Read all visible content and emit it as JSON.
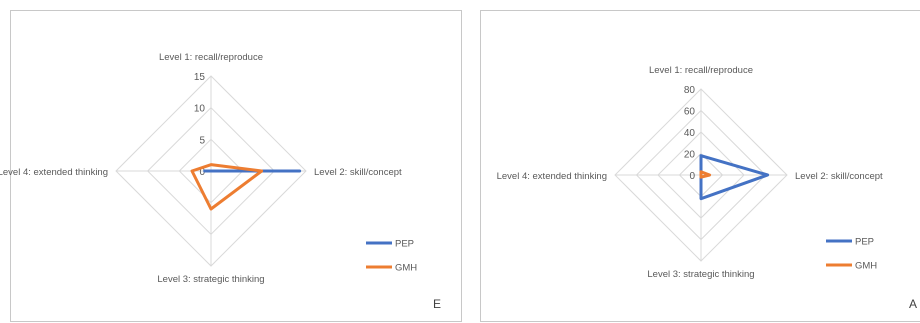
{
  "colors": {
    "pep": "#4472C4",
    "gmh": "#ED7D31",
    "grid": "#D9D9D9",
    "text": "#595959"
  },
  "chart_data": [
    {
      "type": "radar",
      "axes": [
        "Level 1: recall/reproduce",
        "Level 2: skill/concept",
        "Level 3: strategic thinking",
        "Level 4: extended thinking"
      ],
      "ticks": [
        "15",
        "10",
        "5",
        "0"
      ],
      "rlim": [
        0,
        15
      ],
      "grid": true,
      "legend": "bottom-right",
      "series": [
        {
          "name": "PEP",
          "values": [
            0,
            14,
            0,
            1
          ]
        },
        {
          "name": "GMH",
          "values": [
            1,
            8,
            6,
            3
          ]
        }
      ],
      "corner_label": "E"
    },
    {
      "type": "radar",
      "axes": [
        "Level 1: recall/reproduce",
        "Level 2: skill/concept",
        "Level 3: strategic thinking",
        "Level 4: extended thinking"
      ],
      "ticks": [
        "80",
        "60",
        "40",
        "20",
        "0"
      ],
      "rlim": [
        0,
        80
      ],
      "grid": true,
      "legend": "bottom-right",
      "series": [
        {
          "name": "PEP",
          "values": [
            18,
            62,
            22,
            0
          ]
        },
        {
          "name": "GMH",
          "values": [
            3,
            8,
            2,
            0
          ]
        }
      ],
      "corner_label": "A"
    }
  ]
}
